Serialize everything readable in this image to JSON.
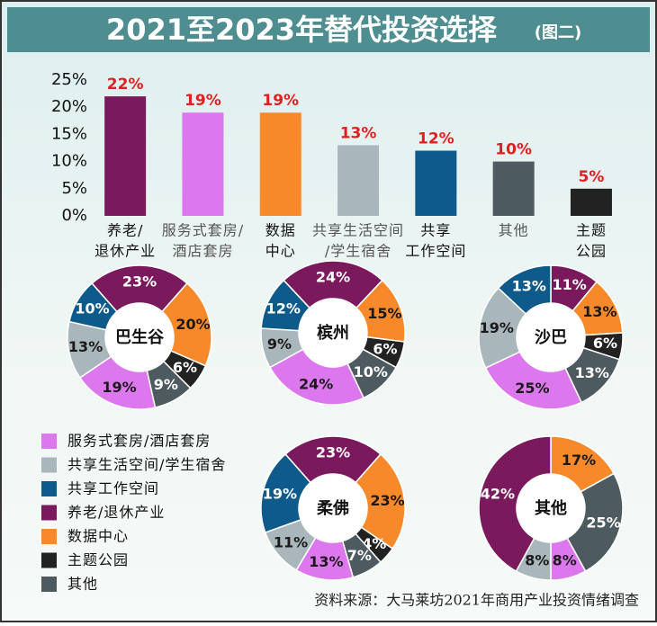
{
  "header": {
    "title": "2021至2023年替代投资选择",
    "figure_label": "(图二)"
  },
  "chart_data": [
    {
      "type": "bar",
      "categories": [
        [
          "养老/",
          "退休产业"
        ],
        [
          "服务式套房/",
          "酒店套房"
        ],
        [
          "数据",
          "中心"
        ],
        [
          "共享生活空间",
          "/学生宿舍"
        ],
        [
          "共享",
          "工作空间"
        ],
        [
          "其他"
        ],
        [
          "主题",
          "公园"
        ]
      ],
      "values": [
        22,
        19,
        19,
        13,
        12,
        10,
        5
      ],
      "value_labels": [
        "22%",
        "19%",
        "19%",
        "13%",
        "12%",
        "10%",
        "5%"
      ],
      "colors": [
        "#7a1a5c",
        "#dd77ee",
        "#f7892a",
        "#a9b6bb",
        "#0e5a8a",
        "#4d5a60",
        "#222222"
      ],
      "ylim": [
        0,
        25
      ],
      "yticks": [
        {
          "value": 0,
          "label": "0%"
        },
        {
          "value": 5,
          "label": "5%"
        },
        {
          "value": 10,
          "label": "10%"
        },
        {
          "value": 15,
          "label": "15%"
        },
        {
          "value": 20,
          "label": "20%"
        },
        {
          "value": 25,
          "label": "25%"
        }
      ]
    },
    {
      "type": "pie",
      "title": "巴生谷",
      "values": [
        23,
        20,
        6,
        9,
        19,
        13,
        10
      ],
      "value_labels": [
        "23%",
        "20%",
        "6%",
        "9%",
        "19%",
        "13%",
        "10%"
      ],
      "colors": [
        "#7a1a5c",
        "#f7892a",
        "#222222",
        "#4d5a60",
        "#dd77ee",
        "#a9b6bb",
        "#0e5a8a"
      ]
    },
    {
      "type": "pie",
      "title": "槟州",
      "values": [
        24,
        15,
        6,
        10,
        24,
        9,
        12
      ],
      "value_labels": [
        "24%",
        "15%",
        "6%",
        "10%",
        "24%",
        "9%",
        "12%"
      ],
      "colors": [
        "#7a1a5c",
        "#f7892a",
        "#222222",
        "#4d5a60",
        "#dd77ee",
        "#a9b6bb",
        "#0e5a8a"
      ]
    },
    {
      "type": "pie",
      "title": "沙巴",
      "values": [
        11,
        13,
        6,
        13,
        25,
        19,
        13
      ],
      "value_labels": [
        "11%",
        "13%",
        "6%",
        "13%",
        "25%",
        "19%",
        "13%"
      ],
      "colors": [
        "#7a1a5c",
        "#f7892a",
        "#222222",
        "#4d5a60",
        "#dd77ee",
        "#a9b6bb",
        "#0e5a8a"
      ]
    },
    {
      "type": "pie",
      "title": "柔佛",
      "values": [
        23,
        23,
        4,
        7,
        13,
        11,
        19
      ],
      "value_labels": [
        "23%",
        "23%",
        "4%",
        "7%",
        "13%",
        "11%",
        "19%"
      ],
      "colors": [
        "#7a1a5c",
        "#f7892a",
        "#222222",
        "#4d5a60",
        "#dd77ee",
        "#a9b6bb",
        "#0e5a8a"
      ]
    },
    {
      "type": "pie",
      "title": "其他",
      "values": [
        17,
        25,
        8,
        8,
        42
      ],
      "value_labels": [
        "17%",
        "25%",
        "8%",
        "8%",
        "42%"
      ],
      "colors": [
        "#f7892a",
        "#4d5a60",
        "#dd77ee",
        "#a9b6bb",
        "#7a1a5c"
      ]
    }
  ],
  "legend": [
    {
      "name": "服务式套房/酒店套房",
      "color": "#dd77ee"
    },
    {
      "name": "共享生活空间/学生宿舍",
      "color": "#a9b6bb"
    },
    {
      "name": "共享工作空间",
      "color": "#0e5a8a"
    },
    {
      "name": "养老/退休产业",
      "color": "#7a1a5c"
    },
    {
      "name": "数据中心",
      "color": "#f7892a"
    },
    {
      "name": "主题公园",
      "color": "#222222"
    },
    {
      "name": "其他",
      "color": "#4d5a60"
    }
  ],
  "source": "资料来源：大马莱坊2021年商用产业投资情绪调查"
}
